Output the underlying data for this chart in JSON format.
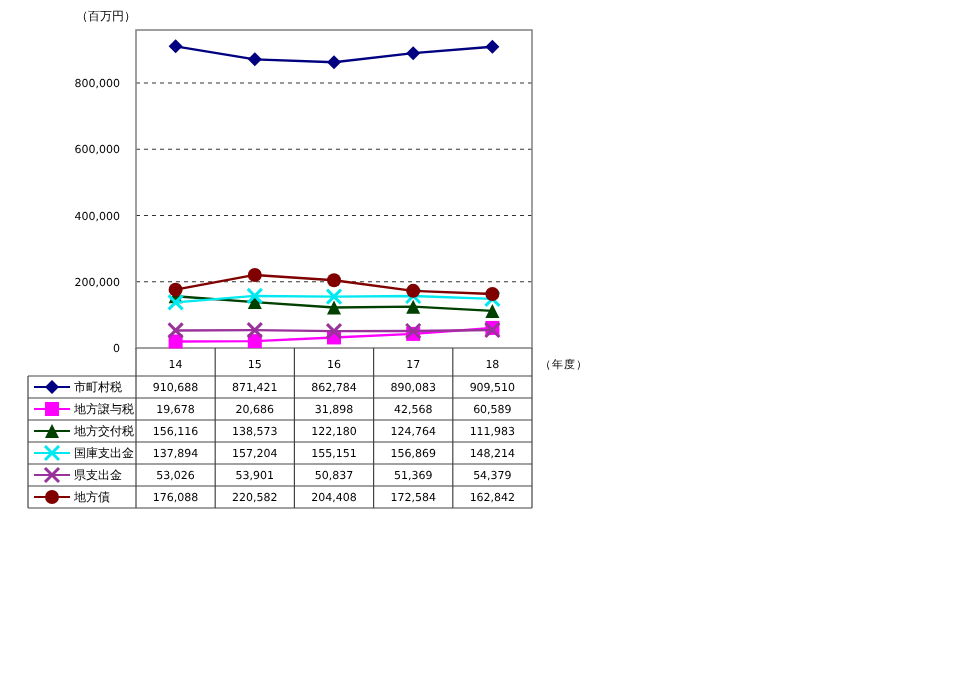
{
  "chart_data": {
    "type": "line",
    "ylabel": "（百万円）",
    "xlabel": "（年度）",
    "categories": [
      "14",
      "15",
      "16",
      "17",
      "18"
    ],
    "ylim": [
      0,
      960000
    ],
    "yticks": [
      {
        "value": 0,
        "label": "0"
      },
      {
        "value": 200000,
        "label": "200,000"
      },
      {
        "value": 400000,
        "label": "400,000"
      },
      {
        "value": 600000,
        "label": "600,000"
      },
      {
        "value": 800000,
        "label": "800,000"
      }
    ],
    "grid": "y",
    "line_style": "solid",
    "legend": "bottom",
    "series": [
      {
        "name": "市町村税",
        "color": "#000080",
        "marker": "diamond",
        "values": [
          910688,
          871421,
          862784,
          890083,
          909510
        ],
        "value_labels": [
          "910,688",
          "871,421",
          "862,784",
          "890,083",
          "909,510"
        ]
      },
      {
        "name": "地方譲与税",
        "color": "#ff00ff",
        "marker": "square",
        "values": [
          19678,
          20686,
          31898,
          42568,
          60589
        ],
        "value_labels": [
          "19,678",
          "20,686",
          "31,898",
          "42,568",
          "60,589"
        ]
      },
      {
        "name": "地方交付税",
        "color": "#004000",
        "marker": "triangle",
        "values": [
          156116,
          138573,
          122180,
          124764,
          111983
        ],
        "value_labels": [
          "156,116",
          "138,573",
          "122,180",
          "124,764",
          "111,983"
        ]
      },
      {
        "name": "国庫支出金",
        "color": "#00e8f0",
        "marker": "cross",
        "values": [
          137894,
          157204,
          155151,
          156869,
          148214
        ],
        "value_labels": [
          "137,894",
          "157,204",
          "155,151",
          "156,869",
          "148,214"
        ]
      },
      {
        "name": "県支出金",
        "color": "#993399",
        "marker": "cross",
        "values": [
          53026,
          53901,
          50837,
          51369,
          54379
        ],
        "value_labels": [
          "53,026",
          "53,901",
          "50,837",
          "51,369",
          "54,379"
        ]
      },
      {
        "name": "地方債",
        "color": "#800000",
        "marker": "circle",
        "values": [
          176088,
          220582,
          204408,
          172584,
          162842
        ],
        "value_labels": [
          "176,088",
          "220,582",
          "204,408",
          "172,584",
          "162,842"
        ]
      }
    ]
  }
}
